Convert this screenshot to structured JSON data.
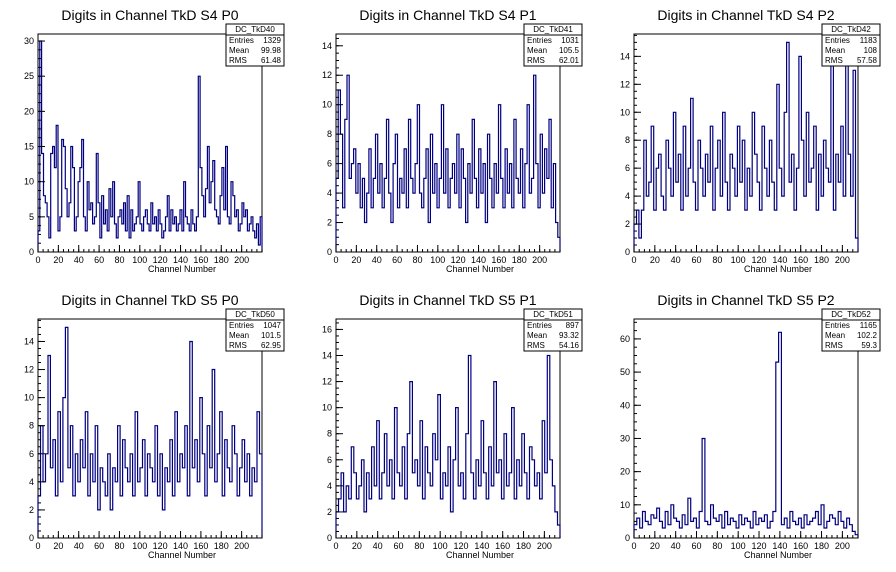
{
  "chart_data": [
    {
      "type": "histogram",
      "title": "Digits in Channel TkD S4 P0",
      "xlabel": "Channel Number",
      "xlim": [
        0,
        220
      ],
      "ylim": [
        0,
        31
      ],
      "xticks": [
        0,
        20,
        40,
        60,
        80,
        100,
        120,
        140,
        160,
        180,
        200
      ],
      "yticks": [
        0,
        5,
        10,
        15,
        20,
        25,
        30
      ],
      "stats": {
        "name": "DC_TkD40",
        "rows": [
          {
            "label": "Entries",
            "value": "1329"
          },
          {
            "label": "Mean",
            "value": "99.98"
          },
          {
            "label": "RMS",
            "value": "61.48"
          }
        ]
      },
      "values": [
        3,
        30,
        14,
        8,
        7,
        5,
        2,
        14,
        15,
        12,
        18,
        3,
        5,
        16,
        15,
        9,
        5,
        7,
        15,
        12,
        3,
        5,
        10,
        12,
        16,
        5,
        3,
        10,
        6,
        7,
        4,
        5,
        14,
        7,
        2,
        8,
        4,
        6,
        3,
        9,
        5,
        10,
        4,
        2,
        5,
        6,
        4,
        7,
        3,
        8,
        2,
        6,
        3,
        4,
        5,
        10,
        4,
        3,
        5,
        6,
        4,
        3,
        7,
        4,
        5,
        3,
        6,
        4,
        2,
        3,
        5,
        8,
        3,
        6,
        4,
        5,
        3,
        4,
        6,
        3,
        10,
        5,
        4,
        3,
        6,
        4,
        3,
        5,
        25,
        12,
        8,
        5,
        9,
        15,
        7,
        10,
        13,
        6,
        5,
        4,
        8,
        12,
        6,
        15,
        5,
        4,
        10,
        8,
        5,
        6,
        3,
        4,
        7,
        5,
        6,
        3,
        4,
        5,
        3,
        2,
        4,
        1,
        5
      ]
    },
    {
      "type": "histogram",
      "title": "Digits in Channel TkD S4 P1",
      "xlabel": "Channel Number",
      "xlim": [
        0,
        220
      ],
      "ylim": [
        0,
        14.8
      ],
      "xticks": [
        0,
        20,
        40,
        60,
        80,
        100,
        120,
        140,
        160,
        180,
        200
      ],
      "yticks": [
        0,
        2,
        4,
        6,
        8,
        10,
        12,
        14
      ],
      "stats": {
        "name": "DC_TkD41",
        "rows": [
          {
            "label": "Entries",
            "value": "1031"
          },
          {
            "label": "Mean",
            "value": "105.5"
          },
          {
            "label": "RMS",
            "value": "62.01"
          }
        ]
      },
      "values": [
        5,
        11,
        8,
        3,
        9,
        12,
        5,
        6,
        7,
        4,
        6,
        3,
        5,
        2,
        4,
        7,
        3,
        5,
        8,
        4,
        6,
        3,
        5,
        9,
        4,
        2,
        6,
        8,
        3,
        5,
        4,
        7,
        3,
        9,
        5,
        4,
        6,
        10,
        4,
        3,
        5,
        7,
        2,
        8,
        4,
        6,
        3,
        5,
        10,
        4,
        7,
        3,
        5,
        6,
        4,
        8,
        3,
        7,
        5,
        2,
        6,
        4,
        9,
        5,
        3,
        7,
        4,
        6,
        2,
        8,
        5,
        3,
        6,
        4,
        10,
        5,
        3,
        7,
        4,
        6,
        3,
        9,
        5,
        4,
        7,
        3,
        6,
        10,
        4,
        5,
        12,
        6,
        3,
        8,
        4,
        7,
        5,
        9,
        3,
        6,
        2,
        1
      ]
    },
    {
      "type": "histogram",
      "title": "Digits in Channel TkD S4 P2",
      "xlabel": "Channel Number",
      "xlim": [
        0,
        215
      ],
      "ylim": [
        0,
        15.6
      ],
      "xticks": [
        0,
        20,
        40,
        60,
        80,
        100,
        120,
        140,
        160,
        180,
        200
      ],
      "yticks": [
        0,
        2,
        4,
        6,
        8,
        10,
        12,
        14
      ],
      "stats": {
        "name": "DC_TkD42",
        "rows": [
          {
            "label": "Entries",
            "value": "1183"
          },
          {
            "label": "Mean",
            "value": "108"
          },
          {
            "label": "RMS",
            "value": "57.58"
          }
        ]
      },
      "values": [
        2,
        3,
        1,
        3,
        8,
        4,
        5,
        9,
        3,
        6,
        7,
        4,
        3,
        8,
        6,
        4,
        10,
        5,
        7,
        3,
        9,
        4,
        6,
        11,
        5,
        3,
        8,
        6,
        4,
        7,
        5,
        9,
        3,
        6,
        8,
        4,
        10,
        5,
        3,
        7,
        6,
        4,
        9,
        5,
        8,
        3,
        6,
        4,
        10,
        7,
        5,
        3,
        9,
        6,
        4,
        8,
        5,
        3,
        12,
        6,
        4,
        10,
        15,
        5,
        7,
        3,
        6,
        14,
        8,
        4,
        10,
        5,
        6,
        9,
        3,
        7,
        4,
        8,
        6,
        5,
        14,
        3,
        7,
        5,
        9,
        4,
        15,
        7,
        4,
        13,
        1
      ]
    },
    {
      "type": "histogram",
      "title": "Digits in Channel TkD S5 P0",
      "xlabel": "Channel Number",
      "xlim": [
        0,
        220
      ],
      "ylim": [
        0,
        15.6
      ],
      "xticks": [
        0,
        20,
        40,
        60,
        80,
        100,
        120,
        140,
        160,
        180,
        200
      ],
      "yticks": [
        0,
        2,
        4,
        6,
        8,
        10,
        12,
        14
      ],
      "stats": {
        "name": "DC_TkD50",
        "rows": [
          {
            "label": "Entries",
            "value": "1047"
          },
          {
            "label": "Mean",
            "value": "101.5"
          },
          {
            "label": "RMS",
            "value": "62.95"
          }
        ]
      },
      "values": [
        3,
        8,
        4,
        6,
        13,
        5,
        7,
        3,
        9,
        4,
        10,
        15,
        5,
        8,
        3,
        6,
        4,
        7,
        5,
        9,
        3,
        6,
        4,
        8,
        2,
        5,
        4,
        3,
        6,
        2,
        5,
        4,
        8,
        3,
        7,
        5,
        4,
        6,
        3,
        9,
        4,
        5,
        7,
        3,
        6,
        5,
        4,
        8,
        3,
        6,
        2,
        5,
        4,
        7,
        3,
        9,
        4,
        6,
        5,
        8,
        3,
        14,
        5,
        7,
        4,
        10,
        6,
        3,
        8,
        5,
        12,
        4,
        6,
        9,
        3,
        7,
        5,
        4,
        8,
        6,
        3,
        5,
        7,
        4,
        6,
        3,
        5,
        4,
        9,
        6
      ]
    },
    {
      "type": "histogram",
      "title": "Digits in Channel TkD S5 P1",
      "xlabel": "Channel Number",
      "xlim": [
        0,
        215
      ],
      "ylim": [
        0,
        16.8
      ],
      "xticks": [
        0,
        20,
        40,
        60,
        80,
        100,
        120,
        140,
        160,
        180,
        200
      ],
      "yticks": [
        0,
        2,
        4,
        6,
        8,
        10,
        12,
        14,
        16
      ],
      "stats": {
        "name": "DC_TkD51",
        "rows": [
          {
            "label": "Entries",
            "value": "897"
          },
          {
            "label": "Mean",
            "value": "93.32"
          },
          {
            "label": "RMS",
            "value": "54.16"
          }
        ]
      },
      "values": [
        2,
        3,
        5,
        2,
        4,
        3,
        7,
        5,
        3,
        4,
        6,
        2,
        5,
        3,
        7,
        4,
        9,
        3,
        5,
        8,
        4,
        6,
        3,
        10,
        5,
        4,
        7,
        3,
        8,
        12,
        5,
        6,
        4,
        9,
        3,
        7,
        5,
        4,
        8,
        6,
        11,
        3,
        5,
        4,
        7,
        2,
        6,
        10,
        4,
        5,
        3,
        8,
        14,
        5,
        3,
        6,
        4,
        9,
        5,
        3,
        7,
        4,
        12,
        5,
        6,
        3,
        8,
        4,
        5,
        10,
        3,
        6,
        4,
        8,
        5,
        3,
        7,
        6,
        4,
        5,
        3,
        9,
        5,
        14,
        6,
        4,
        2,
        1
      ]
    },
    {
      "type": "histogram",
      "title": "Digits in Channel TkD S5 P2",
      "xlabel": "Channel Number",
      "xlim": [
        0,
        215
      ],
      "ylim": [
        0,
        66
      ],
      "xticks": [
        0,
        20,
        40,
        60,
        80,
        100,
        120,
        140,
        160,
        180,
        200
      ],
      "yticks": [
        0,
        10,
        20,
        30,
        40,
        50,
        60
      ],
      "stats": {
        "name": "DC_TkD52",
        "rows": [
          {
            "label": "Entries",
            "value": "1165"
          },
          {
            "label": "Mean",
            "value": "102.2"
          },
          {
            "label": "RMS",
            "value": "59.3"
          }
        ]
      },
      "values": [
        4,
        6,
        3,
        8,
        5,
        4,
        7,
        6,
        9,
        5,
        3,
        8,
        4,
        10,
        6,
        5,
        3,
        7,
        4,
        12,
        5,
        6,
        3,
        8,
        30,
        5,
        4,
        10,
        6,
        5,
        7,
        3,
        8,
        4,
        6,
        5,
        3,
        7,
        4,
        6,
        5,
        3,
        8,
        4,
        6,
        5,
        7,
        3,
        5,
        8,
        53,
        62,
        4,
        6,
        3,
        8,
        5,
        4,
        6,
        3,
        7,
        4,
        5,
        6,
        8,
        4,
        10,
        3,
        5,
        7,
        6,
        4,
        8,
        5,
        3,
        6,
        4,
        2,
        1
      ]
    }
  ]
}
